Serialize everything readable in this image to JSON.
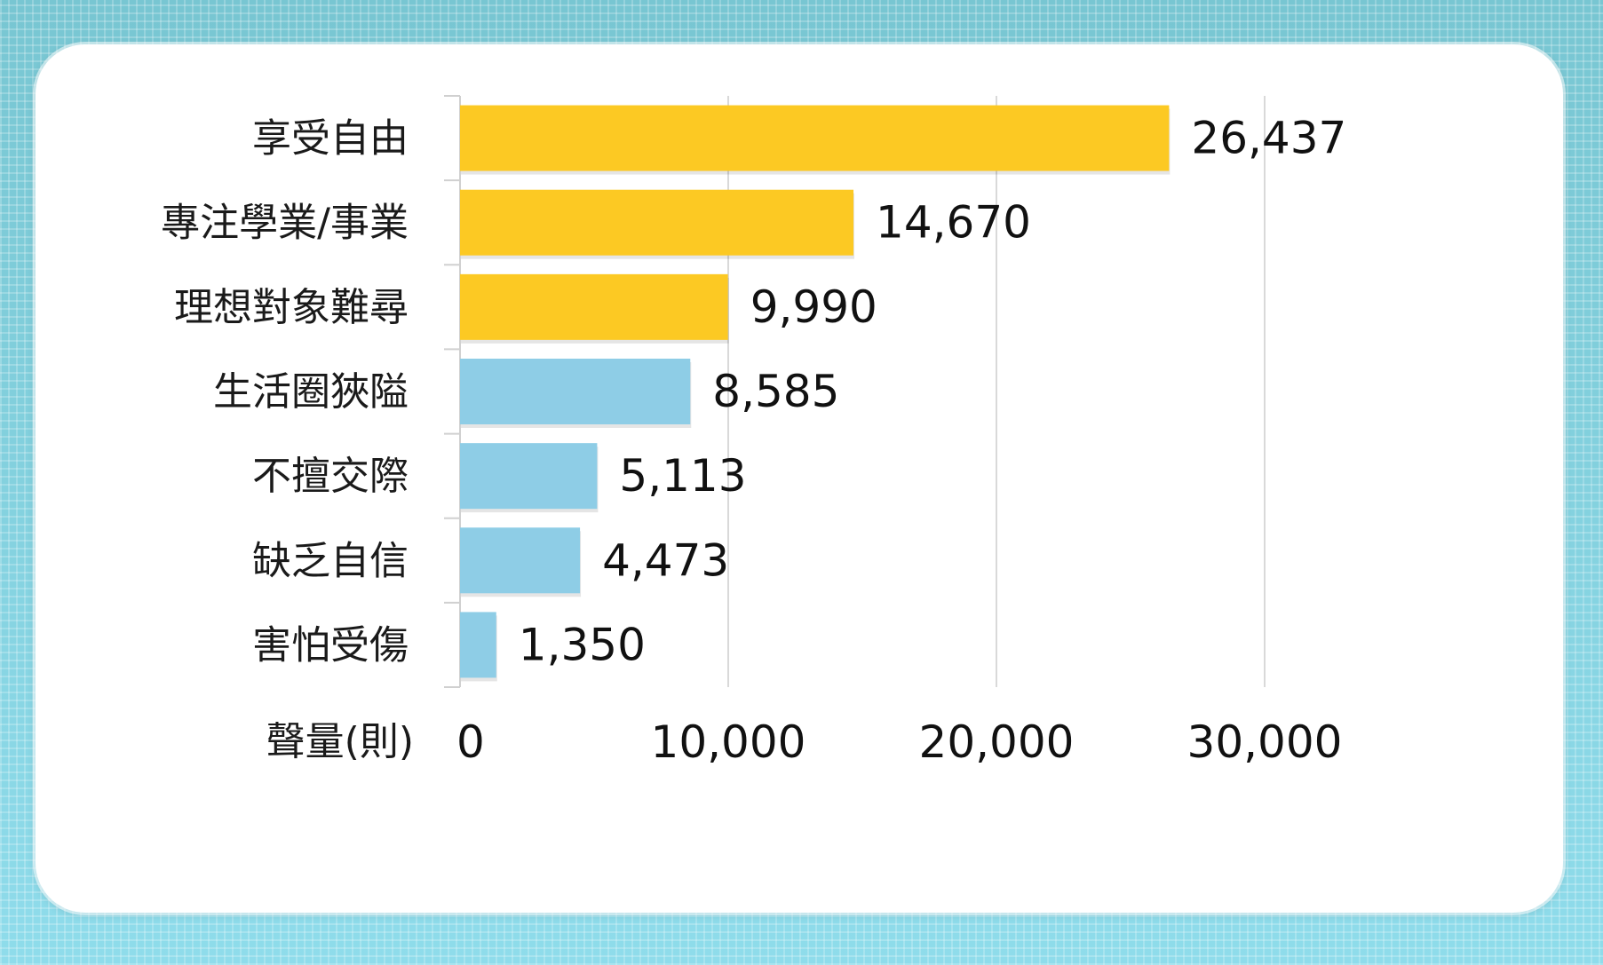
{
  "chart_data": {
    "type": "bar",
    "orientation": "horizontal",
    "categories": [
      "享受自由",
      "專注學業/事業",
      "理想對象難尋",
      "生活圈狹隘",
      "不擅交際",
      "缺乏自信",
      "害怕受傷"
    ],
    "values": [
      26437,
      14670,
      9990,
      8585,
      5113,
      4473,
      1350
    ],
    "value_labels": [
      "26,437",
      "14,670",
      "9,990",
      "8,585",
      "5,113",
      "4,473",
      "1,350"
    ],
    "bar_colors": [
      "#fcc923",
      "#fcc923",
      "#fcc923",
      "#8ecde6",
      "#8ecde6",
      "#8ecde6",
      "#8ecde6"
    ],
    "xlabel": "聲量(則)",
    "xlim": [
      0,
      30000
    ],
    "xticks": [
      0,
      10000,
      20000,
      30000
    ],
    "xtick_labels": [
      "0",
      "10,000",
      "20,000",
      "30,000"
    ],
    "grid": "vertical",
    "legend": "none"
  },
  "colors": {
    "highlight": "#fcc923",
    "normal": "#8ecde6",
    "background": "#7fcfdc"
  }
}
